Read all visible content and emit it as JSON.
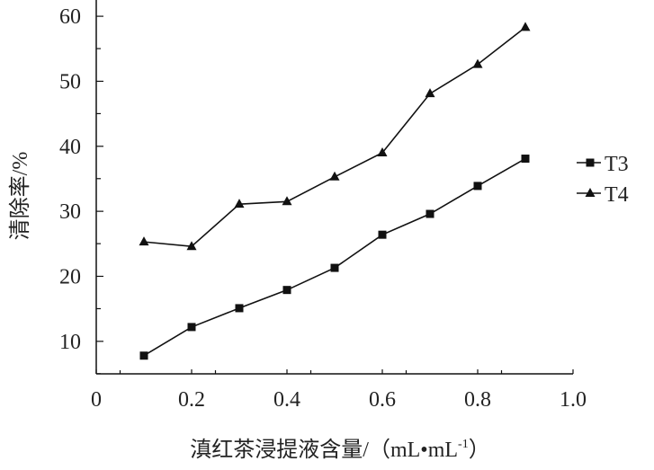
{
  "chart_data": {
    "type": "line",
    "title": "",
    "xlabel": "滇红茶浸提液含量/（mL•mL",
    "xlabel_sup": "-1",
    "xlabel_close": "）",
    "ylabel": "清除率/%",
    "xlim": [
      0,
      1.0
    ],
    "ylim": [
      5,
      62.5
    ],
    "x_ticks": [
      0,
      0.2,
      0.4,
      0.6,
      0.8,
      1.0
    ],
    "x_tick_labels": [
      "0",
      "0.2",
      "0.4",
      "0.6",
      "0.8",
      "1.0"
    ],
    "y_ticks": [
      10,
      20,
      30,
      40,
      50,
      60
    ],
    "y_tick_labels": [
      "10",
      "20",
      "30",
      "40",
      "50",
      "60"
    ],
    "grid": false,
    "legend_position": "right",
    "x": [
      0.1,
      0.2,
      0.3,
      0.4,
      0.5,
      0.6,
      0.7,
      0.8,
      0.9
    ],
    "series": [
      {
        "name": "T3",
        "marker": "square",
        "values": [
          7.8,
          12.2,
          15.1,
          17.9,
          21.3,
          26.4,
          29.6,
          33.9,
          38.1
        ]
      },
      {
        "name": "T4",
        "marker": "triangle",
        "values": [
          25.3,
          24.6,
          31.1,
          31.5,
          35.3,
          39.0,
          48.1,
          52.6,
          58.3
        ]
      }
    ],
    "color": "#111111"
  }
}
